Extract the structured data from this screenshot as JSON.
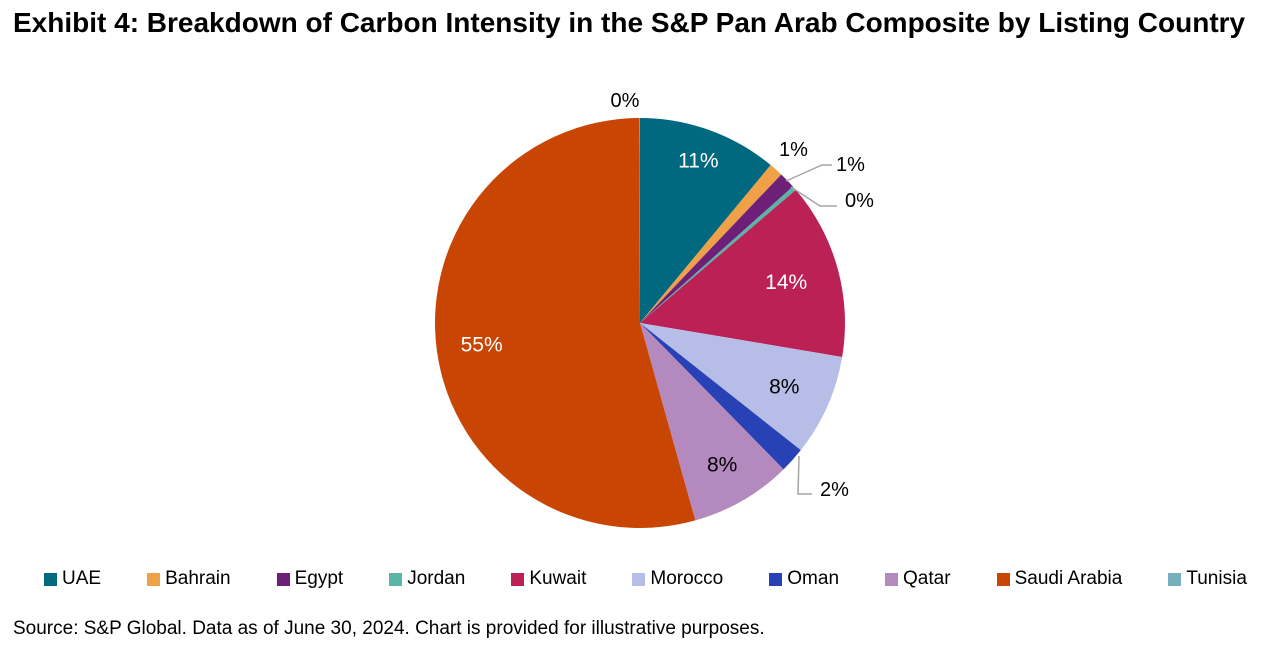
{
  "title": "Exhibit 4: Breakdown of Carbon Intensity in the S&P Pan Arab Composite by Listing Country",
  "source_note": "Source: S&P Global. Data as of June 30, 2024. Chart is provided for illustrative purposes.",
  "chart_data": {
    "type": "pie",
    "title": "Exhibit 4: Breakdown of Carbon Intensity in the S&P Pan Arab Composite by Listing Country",
    "categories": [
      "UAE",
      "Bahrain",
      "Egypt",
      "Jordan",
      "Kuwait",
      "Morocco",
      "Oman",
      "Qatar",
      "Saudi Arabia",
      "Tunisia"
    ],
    "values": [
      11,
      1,
      1,
      0,
      14,
      8,
      2,
      8,
      55,
      0
    ],
    "labels": [
      "11%",
      "1%",
      "1%",
      "0%",
      "14%",
      "8%",
      "2%",
      "8%",
      "55%",
      "0%"
    ],
    "render_values": [
      11,
      1.1,
      1.3,
      0.35,
      13.9,
      8,
      2,
      8,
      54.3,
      0.05
    ],
    "colors": [
      "#00687F",
      "#EFA148",
      "#6E2078",
      "#59B5A5",
      "#BB2155",
      "#B6BEE7",
      "#2842B6",
      "#B389BE",
      "#C94503",
      "#77AFBC"
    ],
    "start_angle": "12 o'clock, clockwise",
    "legend_position": "bottom",
    "leader_line_color": "#A6A6A6",
    "inside_label_color_white": [
      "UAE",
      "Kuwait",
      "Saudi Arabia"
    ],
    "inside_label_color_black": [
      "Morocco",
      "Qatar"
    ]
  }
}
